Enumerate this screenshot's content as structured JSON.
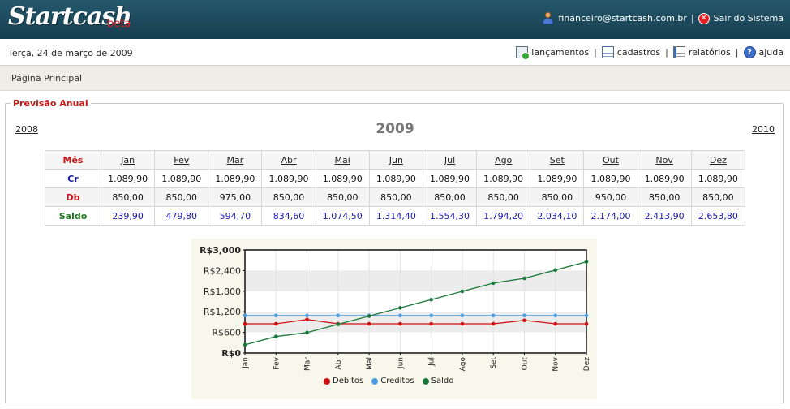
{
  "header": {
    "logo": "Startcash",
    "beta": "beta",
    "user_email": "financeiro@startcash.com.br",
    "separator": "|",
    "logout_label": "Sair do Sistema"
  },
  "datebar": {
    "date": "Terça, 24 de março de 2009",
    "menu": [
      {
        "label": "lançamentos",
        "icon": "ledger-add-icon"
      },
      {
        "label": "cadastros",
        "icon": "records-list-icon"
      },
      {
        "label": "relatórios",
        "icon": "report-icon"
      },
      {
        "label": "ajuda",
        "icon": "help-icon"
      }
    ],
    "separator": "|"
  },
  "breadcrumb": "Página Principal",
  "panel": {
    "legend": "Previsão Anual",
    "prev_year": "2008",
    "current_year": "2009",
    "next_year": "2010"
  },
  "table": {
    "header_label": "Mês",
    "months": [
      "Jan",
      "Fev",
      "Mar",
      "Abr",
      "Mai",
      "Jun",
      "Jul",
      "Ago",
      "Set",
      "Out",
      "Nov",
      "Dez"
    ],
    "rows": [
      {
        "key": "cr",
        "label": "Cr",
        "values": [
          "1.089,90",
          "1.089,90",
          "1.089,90",
          "1.089,90",
          "1.089,90",
          "1.089,90",
          "1.089,90",
          "1.089,90",
          "1.089,90",
          "1.089,90",
          "1.089,90",
          "1.089,90"
        ]
      },
      {
        "key": "db",
        "label": "Db",
        "values": [
          "850,00",
          "850,00",
          "975,00",
          "850,00",
          "850,00",
          "850,00",
          "850,00",
          "850,00",
          "850,00",
          "950,00",
          "850,00",
          "850,00"
        ]
      },
      {
        "key": "sd",
        "label": "Saldo",
        "values": [
          "239,90",
          "479,80",
          "594,70",
          "834,60",
          "1.074,50",
          "1.314,40",
          "1.554,30",
          "1.794,20",
          "2.034,10",
          "2.174,00",
          "2.413,90",
          "2.653,80"
        ]
      }
    ]
  },
  "chart_data": {
    "type": "line",
    "x": [
      "Jan",
      "Fev",
      "Mar",
      "Abr",
      "Mai",
      "Jun",
      "Jul",
      "Ago",
      "Set",
      "Out",
      "Nov",
      "Dez"
    ],
    "ylim": [
      0,
      3000
    ],
    "yticks": [
      "R$0",
      "R$600",
      "R$1,200",
      "R$1,800",
      "R$2,400",
      "R$3,000"
    ],
    "ytick_values": [
      0,
      600,
      1200,
      1800,
      2400,
      3000
    ],
    "legend_position": "bottom",
    "series": [
      {
        "name": "Debitos",
        "color": "#d01010",
        "values": [
          850,
          850,
          975,
          850,
          850,
          850,
          850,
          850,
          850,
          950,
          850,
          850
        ]
      },
      {
        "name": "Creditos",
        "color": "#4a9ee0",
        "values": [
          1089.9,
          1089.9,
          1089.9,
          1089.9,
          1089.9,
          1089.9,
          1089.9,
          1089.9,
          1089.9,
          1089.9,
          1089.9,
          1089.9
        ]
      },
      {
        "name": "Saldo",
        "color": "#1c7a3a",
        "values": [
          239.9,
          479.8,
          594.7,
          834.6,
          1074.5,
          1314.4,
          1554.3,
          1794.2,
          2034.1,
          2174.0,
          2413.9,
          2653.8
        ]
      }
    ]
  }
}
